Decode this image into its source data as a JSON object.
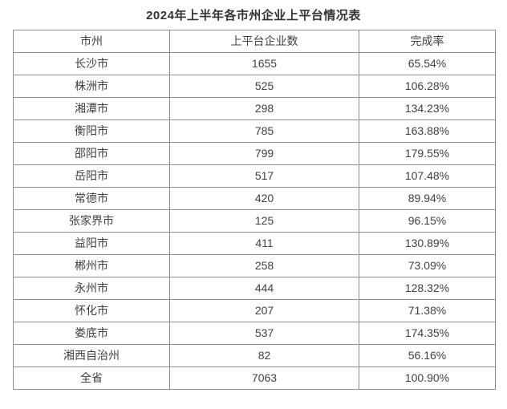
{
  "title": "2024年上半年各市州企业上平台情况表",
  "table": {
    "columns": [
      "市州",
      "上平台企业数",
      "完成率"
    ],
    "rows": [
      [
        "长沙市",
        "1655",
        "65.54%"
      ],
      [
        "株洲市",
        "525",
        "106.28%"
      ],
      [
        "湘潭市",
        "298",
        "134.23%"
      ],
      [
        "衡阳市",
        "785",
        "163.88%"
      ],
      [
        "邵阳市",
        "799",
        "179.55%"
      ],
      [
        "岳阳市",
        "517",
        "107.48%"
      ],
      [
        "常德市",
        "420",
        "89.94%"
      ],
      [
        "张家界市",
        "125",
        "96.15%"
      ],
      [
        "益阳市",
        "411",
        "130.89%"
      ],
      [
        "郴州市",
        "258",
        "73.09%"
      ],
      [
        "永州市",
        "444",
        "128.32%"
      ],
      [
        "怀化市",
        "207",
        "71.38%"
      ],
      [
        "娄底市",
        "537",
        "174.35%"
      ],
      [
        "湘西自治州",
        "82",
        "56.16%"
      ],
      [
        "全省",
        "7063",
        "100.90%"
      ]
    ]
  },
  "colors": {
    "border": "#8c8c8c",
    "text": "#404040",
    "title_text": "#333333",
    "background": "#ffffff"
  }
}
